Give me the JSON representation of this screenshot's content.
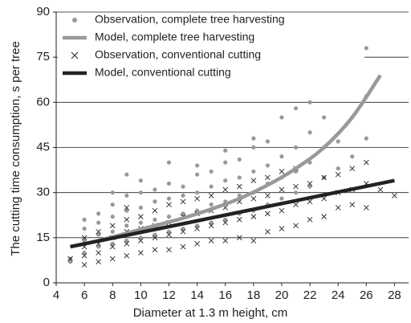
{
  "chart_data": {
    "type": "scatter",
    "xlabel": "Diameter at 1.3 m height, cm",
    "ylabel": "The cutting time consumption, s per tree",
    "xlim": [
      4,
      29
    ],
    "xticks": [
      4,
      6,
      8,
      10,
      12,
      14,
      16,
      18,
      20,
      22,
      24,
      26,
      28
    ],
    "ylim": [
      0,
      90
    ],
    "yticks": [
      0,
      15,
      30,
      45,
      60,
      75,
      90
    ],
    "grid": true,
    "legend": "upper left",
    "series": [
      {
        "name": "Observation, complete tree harvesting",
        "color": "#999999",
        "marker": "circle",
        "x": [
          5,
          5,
          6,
          6,
          6,
          6,
          7,
          7,
          7,
          7,
          8,
          8,
          8,
          8,
          8,
          9,
          9,
          9,
          9,
          9,
          10,
          10,
          10,
          10,
          10,
          11,
          11,
          11,
          11,
          12,
          12,
          12,
          12,
          12,
          13,
          13,
          13,
          13,
          14,
          14,
          14,
          14,
          14,
          15,
          15,
          15,
          15,
          16,
          16,
          16,
          16,
          16,
          17,
          17,
          17,
          17,
          18,
          18,
          18,
          18,
          18,
          19,
          19,
          19,
          19,
          20,
          20,
          20,
          20,
          21,
          21,
          21,
          21,
          22,
          22,
          22,
          22,
          23,
          23,
          23,
          24,
          24,
          25,
          25,
          26,
          26,
          26
        ],
        "values": [
          7,
          8,
          10,
          14,
          18,
          21,
          12,
          16,
          20,
          23,
          13,
          17,
          22,
          26,
          30,
          14,
          19,
          24,
          29,
          36,
          15,
          20,
          25,
          30,
          34,
          16,
          21,
          27,
          31,
          17,
          22,
          28,
          33,
          40,
          18,
          23,
          29,
          32,
          19,
          24,
          30,
          36,
          39,
          20,
          26,
          32,
          37,
          21,
          27,
          34,
          40,
          44,
          23,
          29,
          35,
          41,
          24,
          30,
          37,
          45,
          48,
          26,
          33,
          39,
          47,
          28,
          35,
          42,
          55,
          30,
          37,
          45,
          58,
          32,
          40,
          50,
          60,
          35,
          45,
          55,
          38,
          47,
          42,
          55,
          48,
          62,
          78
        ]
      },
      {
        "name": "Model, complete tree harvesting",
        "color": "#999999",
        "marker": "line",
        "x": [
          5,
          7,
          9,
          11,
          13,
          15,
          17,
          19,
          21,
          23,
          25,
          27
        ],
        "values": [
          12,
          14,
          16.5,
          19,
          21.5,
          24.5,
          28,
          32.5,
          38,
          45,
          55,
          69
        ]
      },
      {
        "name": "Observation, conventional cutting",
        "color": "#222222",
        "marker": "x",
        "x": [
          5,
          6,
          6,
          6,
          6,
          7,
          7,
          7,
          7,
          8,
          8,
          8,
          8,
          9,
          9,
          9,
          9,
          9,
          10,
          10,
          10,
          10,
          11,
          11,
          11,
          11,
          12,
          12,
          12,
          12,
          13,
          13,
          13,
          13,
          14,
          14,
          14,
          14,
          15,
          15,
          15,
          15,
          16,
          16,
          16,
          16,
          17,
          17,
          17,
          17,
          18,
          18,
          18,
          18,
          19,
          19,
          19,
          19,
          20,
          20,
          20,
          20,
          21,
          21,
          21,
          21,
          22,
          22,
          22,
          23,
          23,
          23,
          24,
          24,
          24,
          25,
          25,
          25,
          26,
          26,
          26,
          27,
          28
        ],
        "values": [
          8,
          6,
          9,
          12,
          15,
          7,
          10,
          13,
          17,
          8,
          12,
          15,
          19,
          9,
          13,
          17,
          21,
          25,
          10,
          14,
          18,
          22,
          11,
          15,
          19,
          24,
          11,
          16,
          20,
          26,
          12,
          17,
          22,
          27,
          13,
          18,
          23,
          28,
          14,
          19,
          24,
          29,
          14,
          20,
          25,
          31,
          15,
          21,
          27,
          32,
          14,
          22,
          28,
          34,
          17,
          23,
          29,
          35,
          18,
          24,
          31,
          37,
          19,
          26,
          32,
          38,
          21,
          27,
          33,
          22,
          28,
          35,
          25,
          30,
          36,
          26,
          31,
          38,
          25,
          33,
          40,
          31,
          29
        ]
      },
      {
        "name": "Model, conventional cutting",
        "color": "#222222",
        "marker": "line",
        "x": [
          5,
          28
        ],
        "values": [
          12,
          34
        ]
      }
    ]
  }
}
